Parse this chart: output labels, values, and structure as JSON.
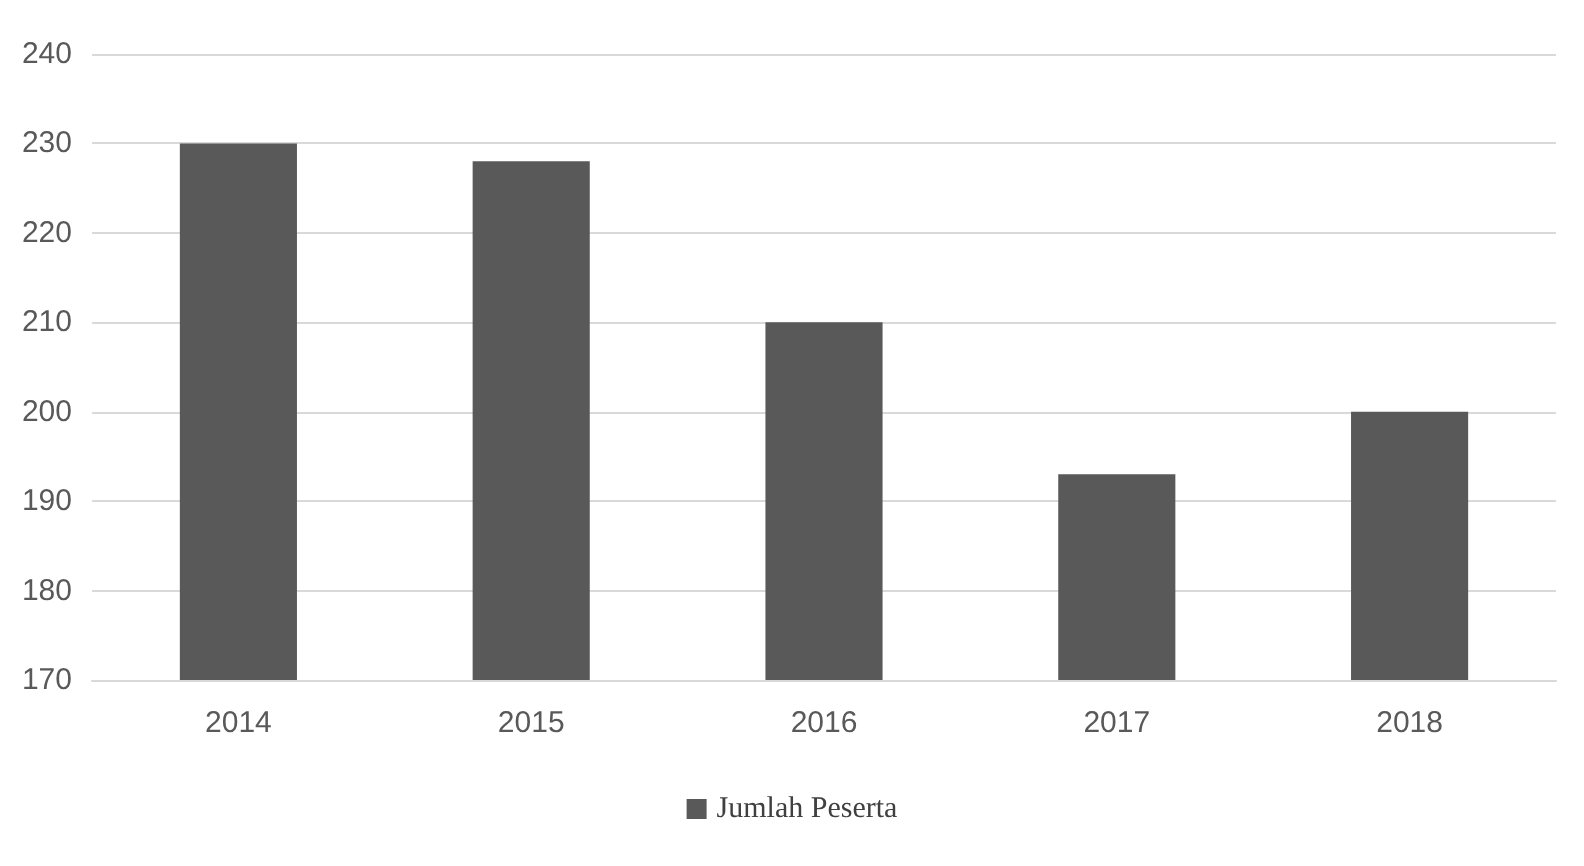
{
  "chart_data": {
    "type": "bar",
    "categories": [
      "2014",
      "2015",
      "2016",
      "2017",
      "2018"
    ],
    "series": [
      {
        "name": "Jumlah Peserta",
        "color": "#595959",
        "values": [
          230,
          228,
          210,
          193,
          200
        ]
      }
    ],
    "ylim": [
      170,
      240
    ],
    "yticks": [
      170,
      180,
      190,
      200,
      210,
      220,
      230,
      240
    ],
    "grid": "y",
    "legend": "bottom"
  }
}
